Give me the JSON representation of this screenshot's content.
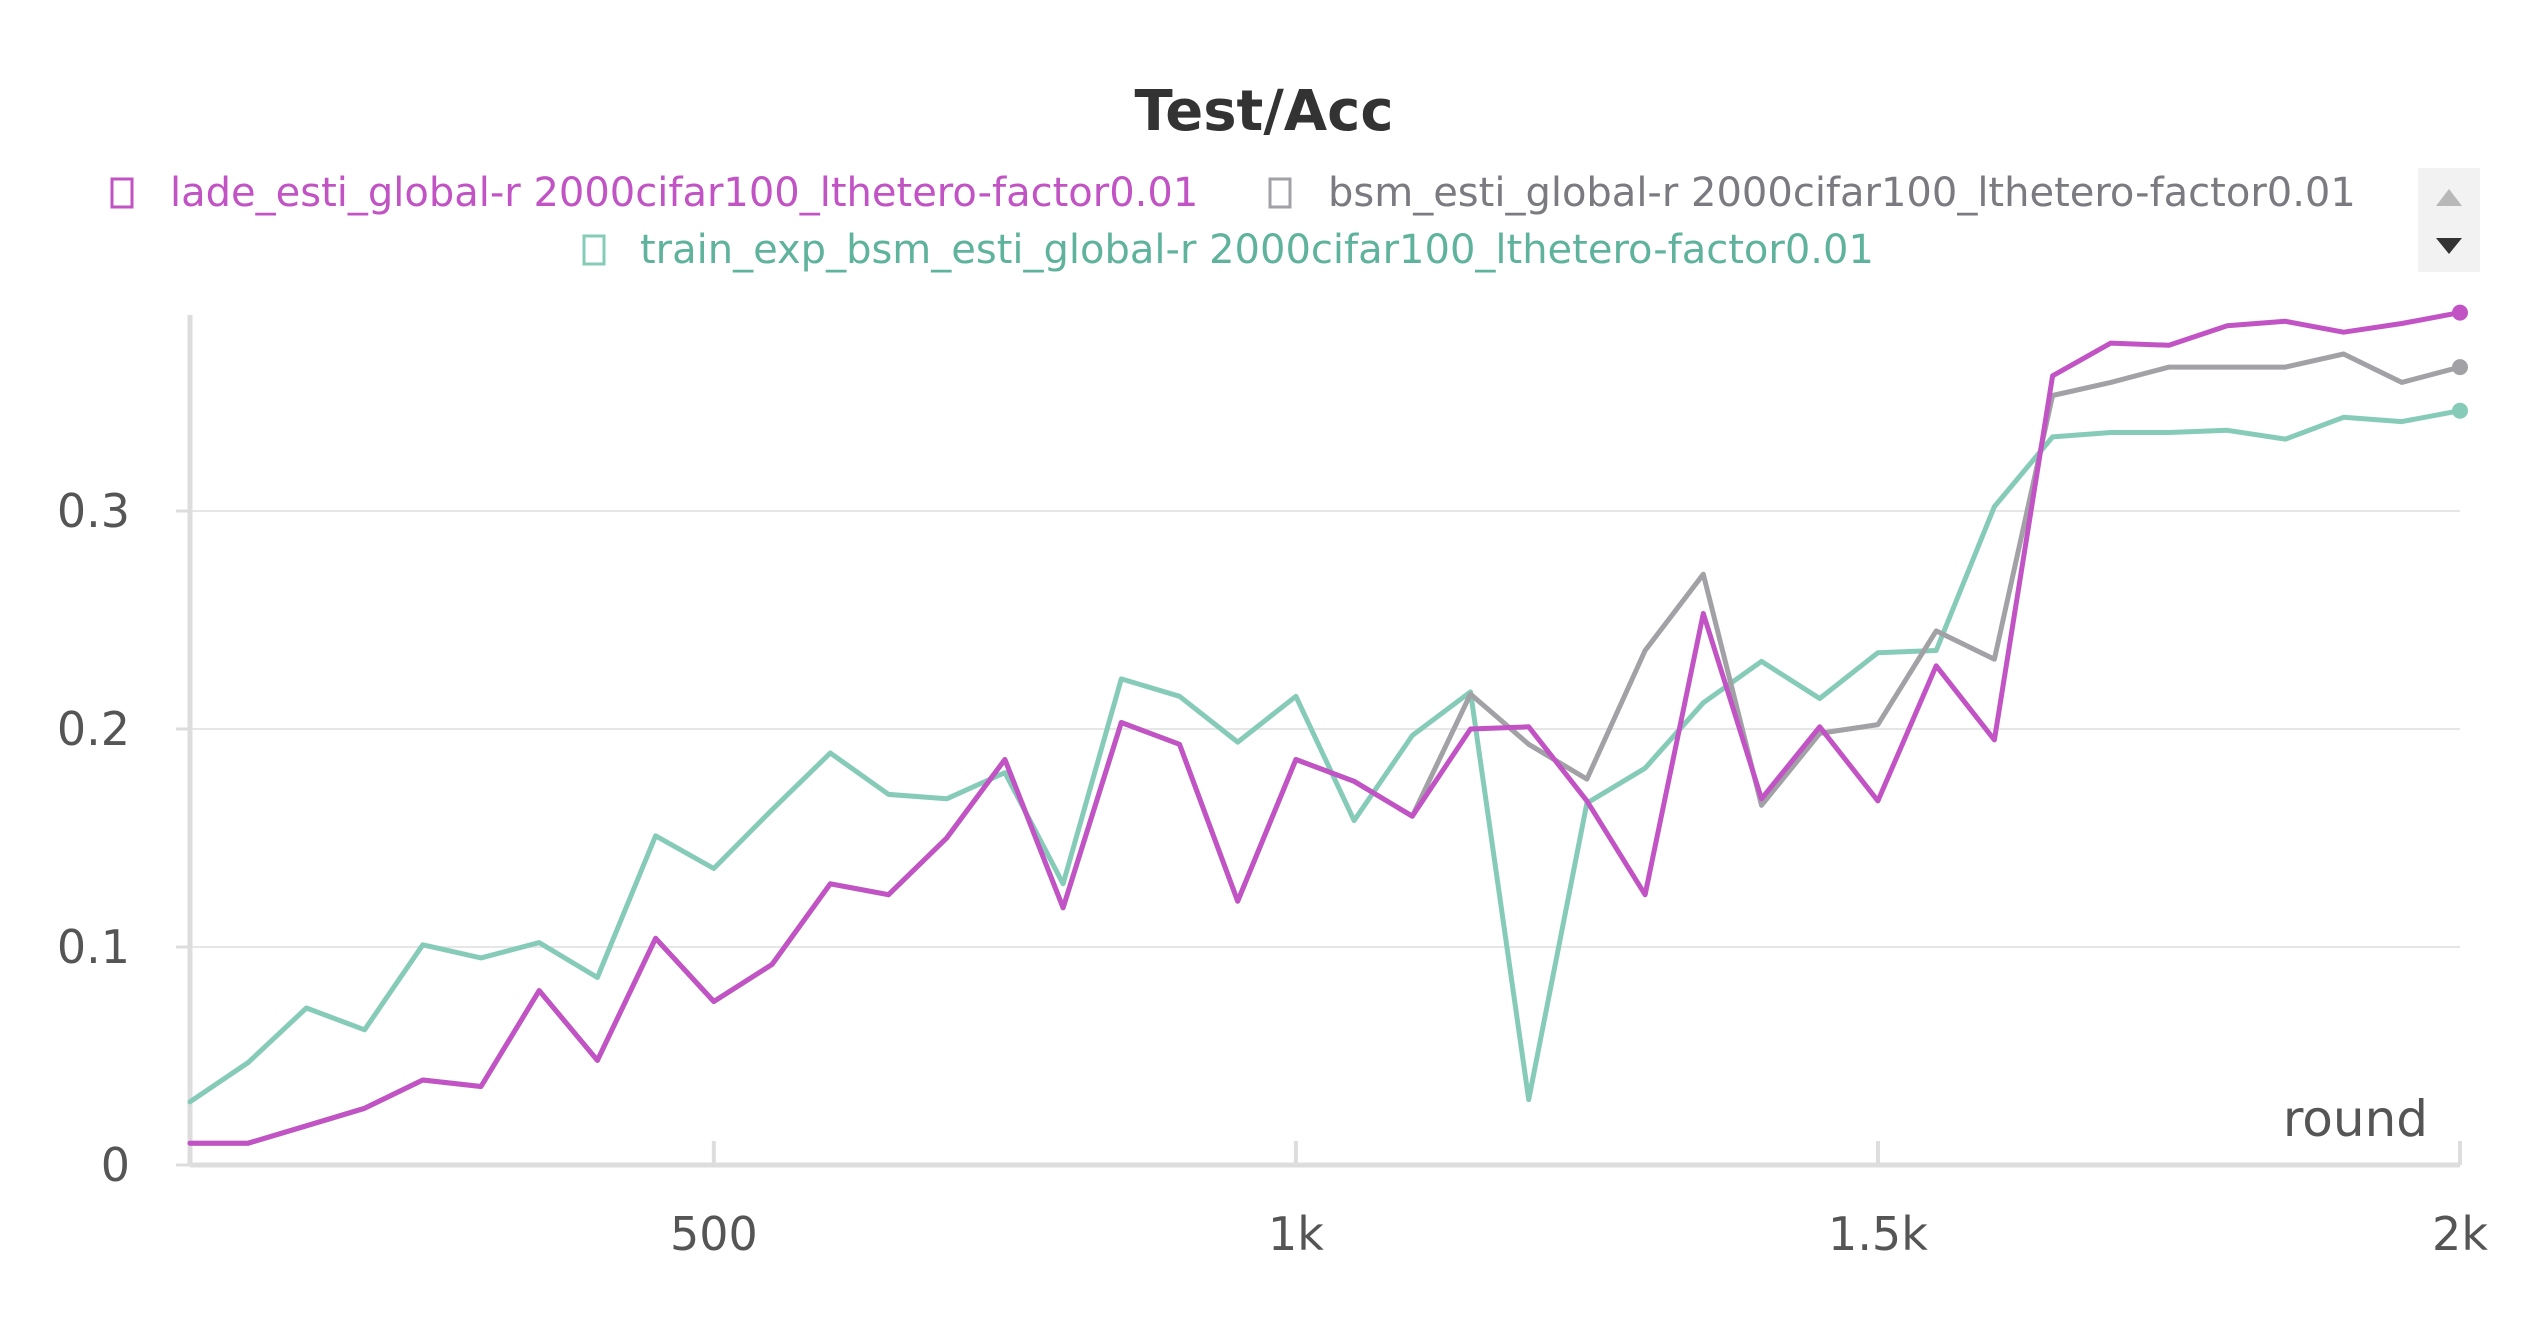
{
  "chart_data": {
    "type": "line",
    "title": "Test/Acc",
    "xlabel": "round",
    "ylabel": "",
    "xlim": [
      50,
      2000
    ],
    "ylim": [
      0,
      0.39
    ],
    "x_ticks": [
      {
        "value": 500,
        "label": "500"
      },
      {
        "value": 1000,
        "label": "1k"
      },
      {
        "value": 1500,
        "label": "1.5k"
      },
      {
        "value": 2000,
        "label": "2k"
      }
    ],
    "y_ticks": [
      {
        "value": 0,
        "label": "0"
      },
      {
        "value": 0.1,
        "label": "0.1"
      },
      {
        "value": 0.2,
        "label": "0.2"
      },
      {
        "value": 0.3,
        "label": "0.3"
      }
    ],
    "grid": true,
    "legend_position": "top",
    "x": [
      50,
      100,
      150,
      200,
      250,
      300,
      350,
      400,
      450,
      500,
      550,
      600,
      650,
      700,
      750,
      800,
      850,
      900,
      950,
      1000,
      1050,
      1100,
      1150,
      1200,
      1250,
      1300,
      1350,
      1400,
      1450,
      1500,
      1550,
      1600,
      1650,
      1700,
      1750,
      1800,
      1850,
      1900,
      1950,
      2000
    ],
    "series": [
      {
        "name": "train_exp_bsm_esti_global-r 2000cifar100_lthetero-factor0.01",
        "color": "#86cbb8",
        "values": [
          0.029,
          0.047,
          0.072,
          0.062,
          0.101,
          0.095,
          0.102,
          0.086,
          0.151,
          0.136,
          0.163,
          0.189,
          0.17,
          0.168,
          0.18,
          0.129,
          0.223,
          0.215,
          0.194,
          0.215,
          0.158,
          0.197,
          0.217,
          0.03,
          0.166,
          0.182,
          0.212,
          0.231,
          0.214,
          0.235,
          0.236,
          0.302,
          0.334,
          0.336,
          0.336,
          0.337,
          0.333,
          0.343,
          0.341,
          0.346
        ]
      },
      {
        "name": "bsm_esti_global-r 2000cifar100_lthetero-factor0.01",
        "color": "#a1a1a6",
        "values": [
          0.01,
          0.01,
          0.018,
          0.026,
          0.039,
          0.036,
          0.08,
          0.048,
          0.104,
          0.075,
          0.092,
          0.129,
          0.124,
          0.15,
          0.186,
          0.118,
          0.203,
          0.193,
          0.121,
          0.186,
          0.176,
          0.16,
          0.216,
          0.193,
          0.177,
          0.236,
          0.271,
          0.165,
          0.198,
          0.202,
          0.245,
          0.232,
          0.353,
          0.359,
          0.366,
          0.366,
          0.366,
          0.372,
          0.359,
          0.366
        ]
      },
      {
        "name": "lade_esti_global-r 2000cifar100_lthetero-factor0.01",
        "color": "#c153c4",
        "values": [
          0.01,
          0.01,
          0.018,
          0.026,
          0.039,
          0.036,
          0.08,
          0.048,
          0.104,
          0.075,
          0.092,
          0.129,
          0.124,
          0.15,
          0.186,
          0.118,
          0.203,
          0.193,
          0.121,
          0.186,
          0.176,
          0.16,
          0.2,
          0.201,
          0.167,
          0.124,
          0.253,
          0.168,
          0.201,
          0.167,
          0.229,
          0.195,
          0.362,
          0.377,
          0.376,
          0.385,
          0.387,
          0.382,
          0.386,
          0.391
        ]
      }
    ]
  },
  "legend": {
    "items": [
      {
        "label": "lade_esti_global-r 2000cifar100_lthetero-factor0.01",
        "color": "#c153c4"
      },
      {
        "label": "bsm_esti_global-r 2000cifar100_lthetero-factor0.01",
        "color": "#a1a1a6"
      },
      {
        "label": "train_exp_bsm_esti_global-r 2000cifar100_lthetero-factor0.01",
        "color": "#86cbb8"
      }
    ],
    "scroll_up_icon": "triangle-up-icon",
    "scroll_down_icon": "triangle-down-icon"
  }
}
